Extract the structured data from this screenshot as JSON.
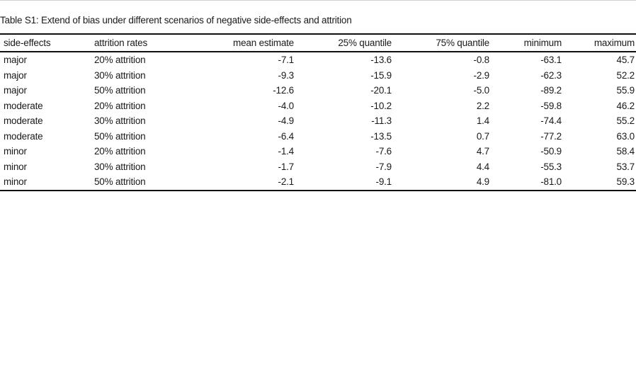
{
  "caption": "Table S1: Extend of bias under different scenarios of negative side-effects and attrition",
  "table": {
    "headers": [
      "side-effects",
      "attrition rates",
      "mean estimate",
      "25% quantile",
      "75% quantile",
      "minimum",
      "maximum"
    ],
    "rows": [
      [
        "major",
        "20% attrition",
        "-7.1",
        "-13.6",
        "-0.8",
        "-63.1",
        "45.7"
      ],
      [
        "major",
        "30% attrition",
        "-9.3",
        "-15.9",
        "-2.9",
        "-62.3",
        "52.2"
      ],
      [
        "major",
        "50% attrition",
        "-12.6",
        "-20.1",
        "-5.0",
        "-89.2",
        "55.9"
      ],
      [
        "moderate",
        "20% attrition",
        "-4.0",
        "-10.2",
        "2.2",
        "-59.8",
        "46.2"
      ],
      [
        "moderate",
        "30% attrition",
        "-4.9",
        "-11.3",
        "1.4",
        "-74.4",
        "55.2"
      ],
      [
        "moderate",
        "50% attrition",
        "-6.4",
        "-13.5",
        "0.7",
        "-77.2",
        "63.0"
      ],
      [
        "minor",
        "20% attrition",
        "-1.4",
        "-7.6",
        "4.7",
        "-50.9",
        "58.4"
      ],
      [
        "minor",
        "30% attrition",
        "-1.7",
        "-7.9",
        "4.4",
        "-55.3",
        "53.7"
      ],
      [
        "minor",
        "50% attrition",
        "-2.1",
        "-9.1",
        "4.9",
        "-81.0",
        "59.3"
      ]
    ]
  }
}
